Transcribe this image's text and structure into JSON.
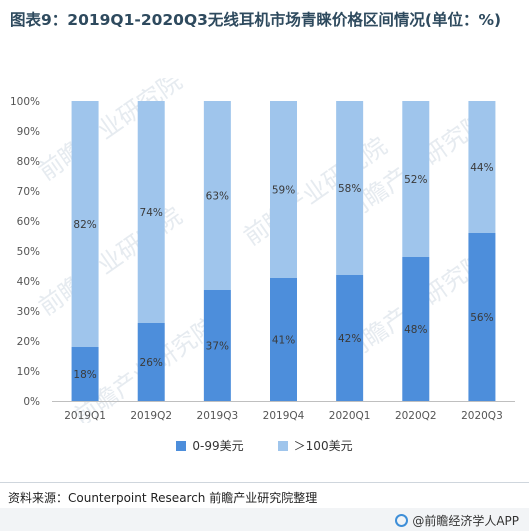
{
  "title": "图表9：2019Q1-2020Q3无线耳机市场青睐价格区间情况(单位：%)",
  "source": "资料来源：Counterpoint Research 前瞻产业研究院整理",
  "footer": {
    "brand": "@前瞻经济学人APP",
    "icon": "qianzhan-logo-icon"
  },
  "watermark": "前瞻产业研究院",
  "colors": {
    "low": "#4d8edb",
    "high": "#9fc5ec",
    "axis_text": "#555555",
    "label_text": "#3a3a3a"
  },
  "chart_data": {
    "type": "bar",
    "stacked": true,
    "categories": [
      "2019Q1",
      "2019Q2",
      "2019Q3",
      "2019Q4",
      "2020Q1",
      "2020Q2",
      "2020Q3"
    ],
    "series": [
      {
        "name": "0-99美元",
        "values": [
          18,
          26,
          37,
          41,
          42,
          48,
          56
        ],
        "labels": [
          "18%",
          "26%",
          "37%",
          "41%",
          "42%",
          "48%",
          "56%"
        ]
      },
      {
        "name": "＞100美元",
        "values": [
          82,
          74,
          63,
          59,
          58,
          52,
          44
        ],
        "labels": [
          "82%",
          "74%",
          "63%",
          "59%",
          "58%",
          "52%",
          "44%"
        ]
      }
    ],
    "yticks": [
      "0%",
      "10%",
      "20%",
      "30%",
      "40%",
      "50%",
      "60%",
      "70%",
      "80%",
      "90%",
      "100%"
    ],
    "ylim": [
      0,
      100
    ],
    "grid": false,
    "legend_position": "bottom"
  }
}
